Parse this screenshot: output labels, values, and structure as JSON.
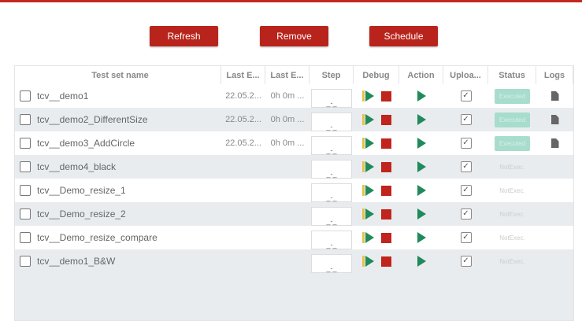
{
  "toolbar": {
    "refresh": "Refresh",
    "remove": "Remove",
    "schedule": "Schedule"
  },
  "columns": [
    "Test set name",
    "Last E...",
    "Last E...",
    "Step",
    "Debug",
    "Action",
    "Uploa...",
    "Status",
    "Logs"
  ],
  "rows": [
    {
      "name": "tcv__demo1",
      "last_exec": "22.05.2...",
      "duration": "0h 0m ...",
      "step": "_-_",
      "uploaded": true,
      "status": "Executed",
      "log": true
    },
    {
      "name": "tcv__demo2_DifferentSize",
      "last_exec": "22.05.2...",
      "duration": "0h 0m ...",
      "step": "_-_",
      "uploaded": true,
      "status": "Executed",
      "log": true
    },
    {
      "name": "tcv__demo3_AddCircle",
      "last_exec": "22.05.2...",
      "duration": "0h 0m ...",
      "step": "_-_",
      "uploaded": true,
      "status": "Executed",
      "log": true
    },
    {
      "name": "tcv__demo4_black",
      "last_exec": "",
      "duration": "",
      "step": "_-_",
      "uploaded": true,
      "status": "NotExec.",
      "log": false
    },
    {
      "name": "tcv__Demo_resize_1",
      "last_exec": "",
      "duration": "",
      "step": "_-_",
      "uploaded": true,
      "status": "NotExec.",
      "log": false
    },
    {
      "name": "tcv__Demo_resize_2",
      "last_exec": "",
      "duration": "",
      "step": "_-_",
      "uploaded": true,
      "status": "NotExec.",
      "log": false
    },
    {
      "name": "tcv__Demo_resize_compare",
      "last_exec": "",
      "duration": "",
      "step": "_-_",
      "uploaded": true,
      "status": "NotExec.",
      "log": false
    },
    {
      "name": "tcv__demo1_B&W",
      "last_exec": "",
      "duration": "",
      "step": "_-_",
      "uploaded": true,
      "status": "NotExec.",
      "log": false
    }
  ],
  "colors": {
    "accent": "#b8241c",
    "play": "#1f8a5c",
    "executed": "#a8dccc"
  }
}
